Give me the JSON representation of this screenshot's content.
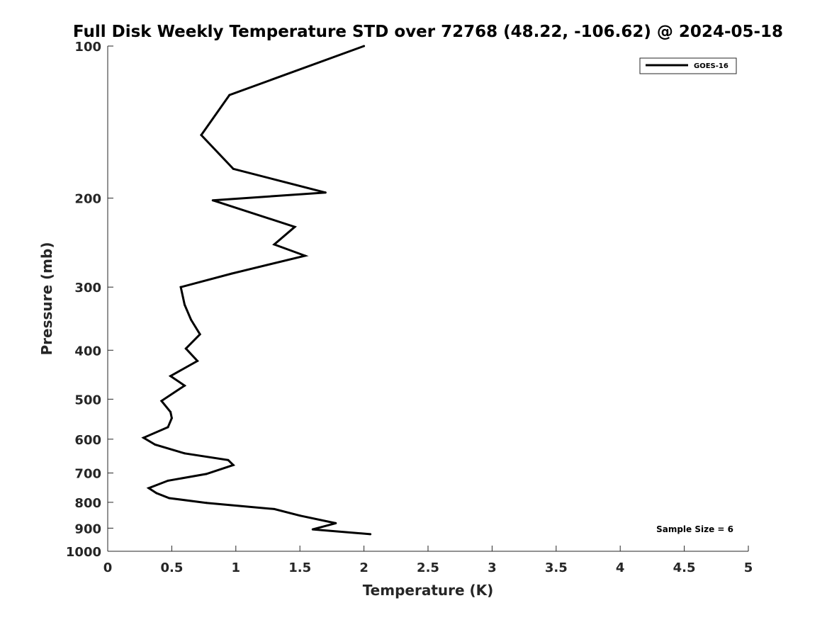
{
  "chart_data": {
    "type": "line",
    "title": "Full Disk Weekly Temperature STD over 72768 (48.22, -106.62) @ 2024-05-18",
    "xlabel": "Temperature (K)",
    "ylabel": "Pressure (mb)",
    "xlim": [
      0,
      5
    ],
    "ylim": [
      1000,
      100
    ],
    "y_scale": "log",
    "y_reversed": true,
    "x_ticks": [
      0,
      0.5,
      1,
      1.5,
      2,
      2.5,
      3,
      3.5,
      4,
      4.5,
      5
    ],
    "x_tick_labels": [
      "0",
      "0.5",
      "1",
      "1.5",
      "2",
      "2.5",
      "3",
      "3.5",
      "4",
      "4.5",
      "5"
    ],
    "y_ticks": [
      100,
      200,
      300,
      400,
      500,
      600,
      700,
      800,
      900,
      1000
    ],
    "y_tick_labels": [
      "100",
      "200",
      "300",
      "400",
      "500",
      "600",
      "700",
      "800",
      "900",
      "1000"
    ],
    "grid": false,
    "legend_position": "top-right",
    "annotation": "Sample Size = 6",
    "series": [
      {
        "name": "GOES-16",
        "color": "#000000",
        "points": [
          [
            2.0,
            100
          ],
          [
            0.95,
            125
          ],
          [
            0.73,
            150
          ],
          [
            0.98,
            175
          ],
          [
            1.7,
            195
          ],
          [
            0.82,
            202
          ],
          [
            1.46,
            228
          ],
          [
            1.3,
            247
          ],
          [
            1.54,
            260
          ],
          [
            0.97,
            282
          ],
          [
            0.57,
            300
          ],
          [
            0.6,
            325
          ],
          [
            0.65,
            348
          ],
          [
            0.72,
            372
          ],
          [
            0.61,
            397
          ],
          [
            0.7,
            420
          ],
          [
            0.49,
            450
          ],
          [
            0.6,
            470
          ],
          [
            0.42,
            504
          ],
          [
            0.49,
            530
          ],
          [
            0.5,
            545
          ],
          [
            0.47,
            568
          ],
          [
            0.28,
            596
          ],
          [
            0.37,
            615
          ],
          [
            0.6,
            640
          ],
          [
            0.94,
            660
          ],
          [
            0.98,
            675
          ],
          [
            0.77,
            703
          ],
          [
            0.47,
            725
          ],
          [
            0.32,
            750
          ],
          [
            0.38,
            767
          ],
          [
            0.48,
            785
          ],
          [
            0.77,
            802
          ],
          [
            1.3,
            825
          ],
          [
            1.5,
            850
          ],
          [
            1.78,
            880
          ],
          [
            1.6,
            905
          ],
          [
            2.05,
            925
          ]
        ]
      }
    ]
  }
}
